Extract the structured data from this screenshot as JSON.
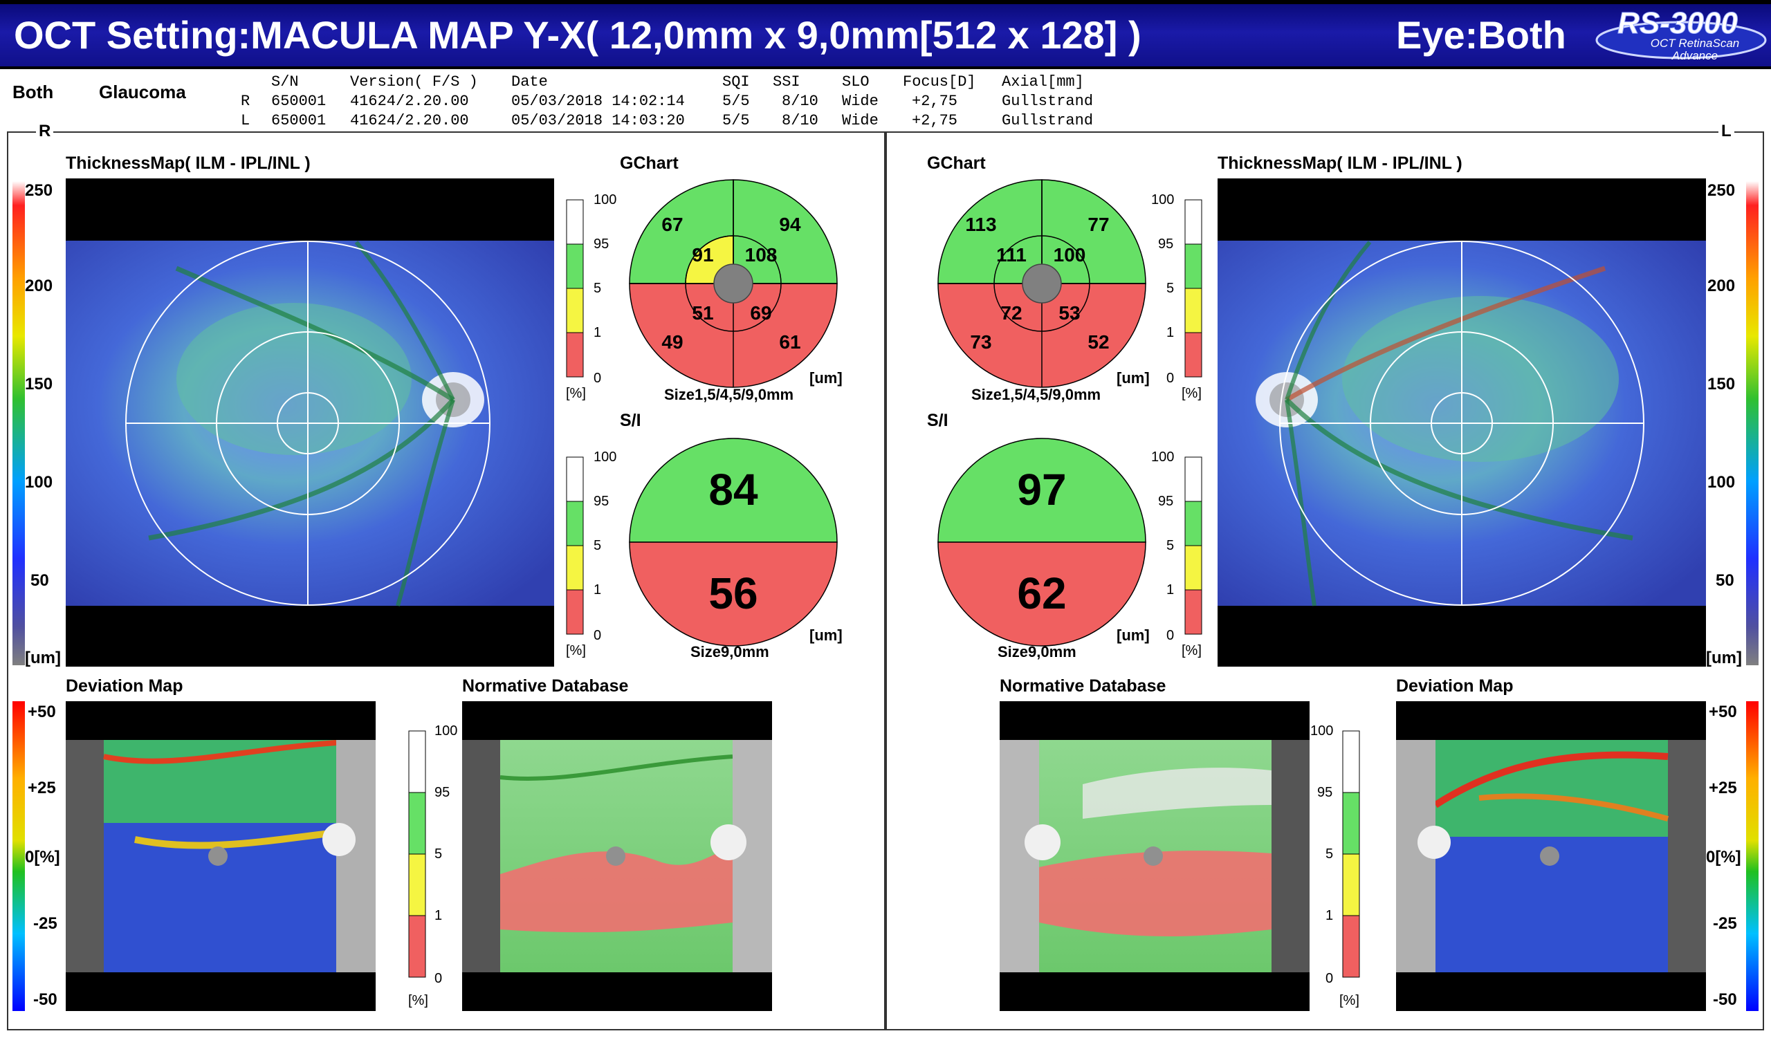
{
  "header": {
    "title": "OCT Setting:MACULA MAP Y-X( 12,0mm x 9,0mm[512 x 128] )",
    "eye": "Eye:Both",
    "logo_main": "RS-3000",
    "logo_sub1": "OCT RetinaScan",
    "logo_sub2": "Advance"
  },
  "info": {
    "eye_label": "Both",
    "mode_label": "Glaucoma",
    "columns": [
      "S/N",
      "Version( F/S )",
      "Date",
      "SQI",
      "SSI",
      "SLO",
      "Focus[D]",
      "Axial[mm]"
    ],
    "rows": [
      {
        "eye": "R",
        "sn": "650001",
        "version": "41624/2.20.00",
        "date": "05/03/2018 14:02:14",
        "sqi": "5/5",
        "ssi": "8/10",
        "slo": "Wide",
        "focus": "+2,75",
        "axial": "Gullstrand"
      },
      {
        "eye": "L",
        "sn": "650001",
        "version": "41624/2.20.00",
        "date": "05/03/2018 14:03:20",
        "sqi": "5/5",
        "ssi": "8/10",
        "slo": "Wide",
        "focus": "+2,75",
        "axial": "Gullstrand"
      }
    ]
  },
  "right_eye": {
    "tag": "R",
    "thickness_title": "ThicknessMap( ILM - IPL/INL )",
    "gchart_title": "GChart",
    "gchart_values": {
      "outer_st": "67",
      "outer_sn": "94",
      "inner_st": "91",
      "inner_sn": "108",
      "inner_it": "51",
      "inner_in": "69",
      "outer_it": "49",
      "outer_in": "61"
    },
    "gchart_unit": "[um]",
    "gchart_caption": "Size1,5/4,5/9,0mm",
    "si_title": "S/I",
    "si_superior": "84",
    "si_inferior": "56",
    "si_unit": "[um]",
    "si_caption": "Size9,0mm",
    "deviation_title": "Deviation Map",
    "normative_title": "Normative Database"
  },
  "left_eye": {
    "tag": "L",
    "thickness_title": "ThicknessMap( ILM - IPL/INL )",
    "gchart_title": "GChart",
    "gchart_values": {
      "outer_st": "113",
      "outer_sn": "77",
      "inner_st": "111",
      "inner_sn": "100",
      "inner_it": "72",
      "inner_in": "53",
      "outer_it": "73",
      "outer_in": "52"
    },
    "gchart_unit": "[um]",
    "gchart_caption": "Size1,5/4,5/9,0mm",
    "si_title": "S/I",
    "si_superior": "97",
    "si_inferior": "62",
    "si_unit": "[um]",
    "si_caption": "Size9,0mm",
    "deviation_title": "Deviation Map",
    "normative_title": "Normative Database"
  },
  "thickness_scale": {
    "labels": [
      "250",
      "200",
      "150",
      "100",
      "50"
    ],
    "unit": "[um]"
  },
  "deviation_scale": {
    "labels": [
      "+50",
      "+25",
      "0[%]",
      "-25",
      "-50"
    ]
  },
  "percent_scale": {
    "labels": [
      "100",
      "95",
      "5",
      "1",
      "0"
    ],
    "unit": "[%]"
  },
  "colors": {
    "green": "#66e066",
    "yellow": "#f5f542",
    "red": "#f06060",
    "gray": "#808080",
    "header_blue": "#1a1aa8"
  }
}
